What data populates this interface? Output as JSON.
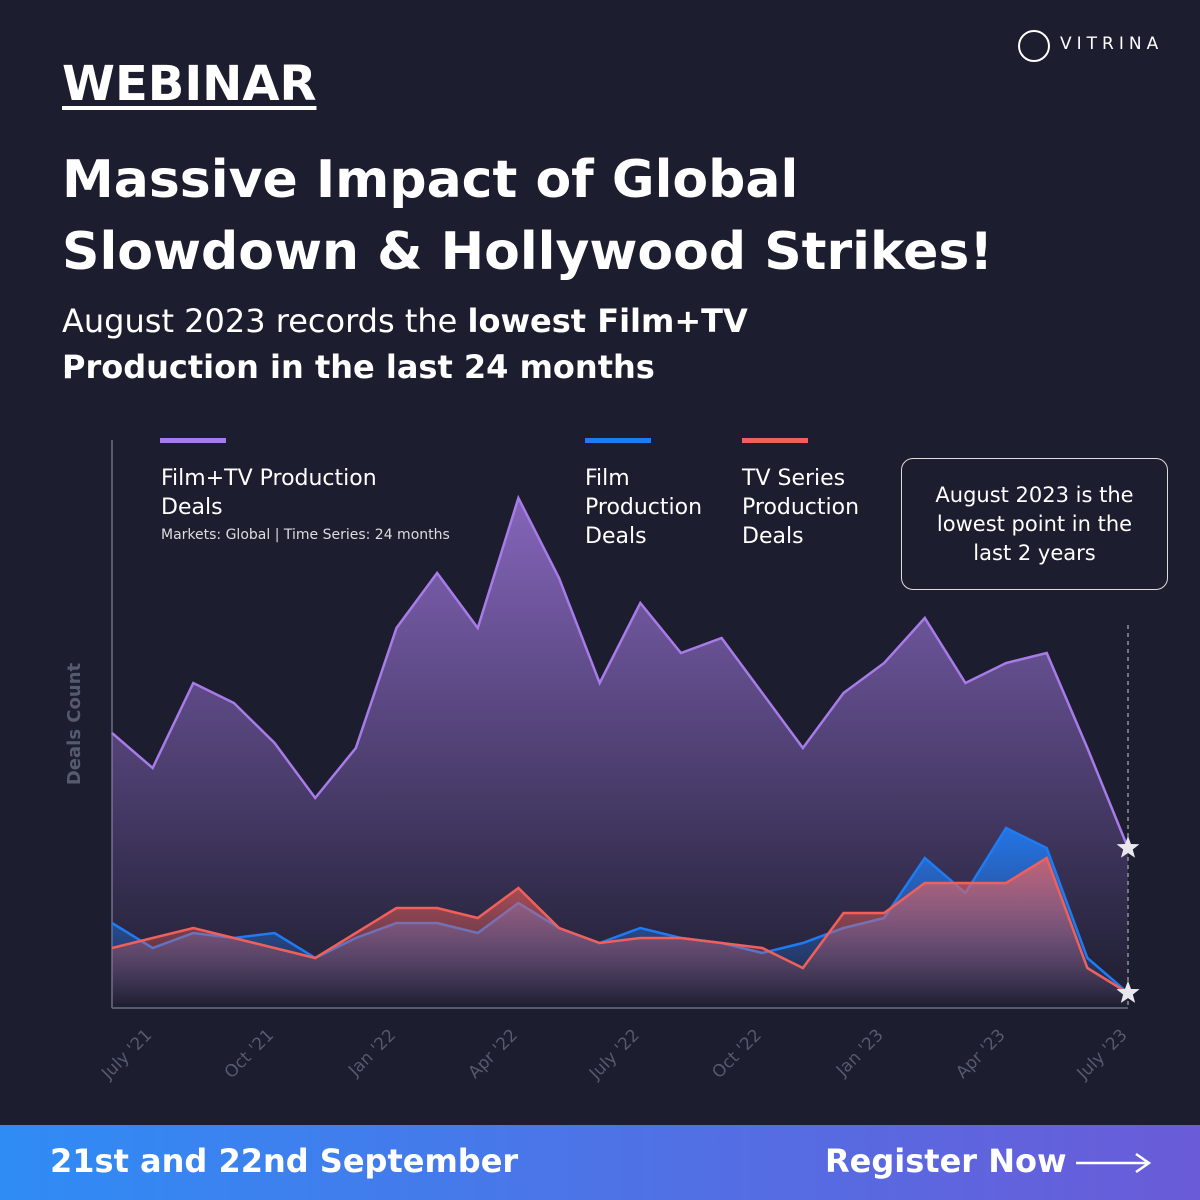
{
  "header": {
    "brand": "VITRINA",
    "kicker": "WEBINAR",
    "title": "Massive Impact of Global Slowdown & Hollywood Strikes!",
    "subtitle_plain": "August 2023 records the ",
    "subtitle_bold": "lowest Film+TV Production in the last 24 months"
  },
  "chart_data": {
    "type": "area",
    "y_label": "Deals Count",
    "note": "Markets: Global | Time Series: 24 months",
    "annotation": "August 2023 is the lowest point in the last 2 years",
    "categories": [
      null,
      "July '21",
      null,
      null,
      "Oct '21",
      null,
      null,
      "Jan '22",
      null,
      null,
      "Apr '22",
      null,
      null,
      "July '22",
      null,
      null,
      "Oct '22",
      null,
      null,
      "Jan '23",
      null,
      null,
      "Apr '23",
      null,
      null,
      "July '23"
    ],
    "ylim": [
      0,
      114
    ],
    "series": [
      {
        "name": "Film+TV Production Deals",
        "color": "#a77ce8",
        "values": [
          55,
          48,
          65,
          61,
          53,
          42,
          52,
          76,
          87,
          76,
          102,
          86,
          65,
          81,
          71,
          74,
          63,
          52,
          63,
          69,
          78,
          65,
          69,
          71,
          52,
          32
        ]
      },
      {
        "name": "Film Production Deals",
        "color": "#1f7bf2",
        "values": [
          17,
          12,
          15,
          14,
          15,
          10,
          14,
          17,
          17,
          15,
          21,
          16,
          13,
          16,
          14,
          13,
          11,
          13,
          16,
          18,
          30,
          23,
          36,
          32,
          10,
          3
        ]
      },
      {
        "name": "TV Series Production Deals",
        "color": "#f0605a",
        "values": [
          12,
          14,
          16,
          14,
          12,
          10,
          15,
          20,
          20,
          18,
          24,
          16,
          13,
          14,
          14,
          13,
          12,
          8,
          19,
          19,
          25,
          25,
          25,
          30,
          8,
          3
        ]
      }
    ]
  },
  "footer": {
    "date": "21st and 22nd September",
    "cta": "Register Now"
  }
}
